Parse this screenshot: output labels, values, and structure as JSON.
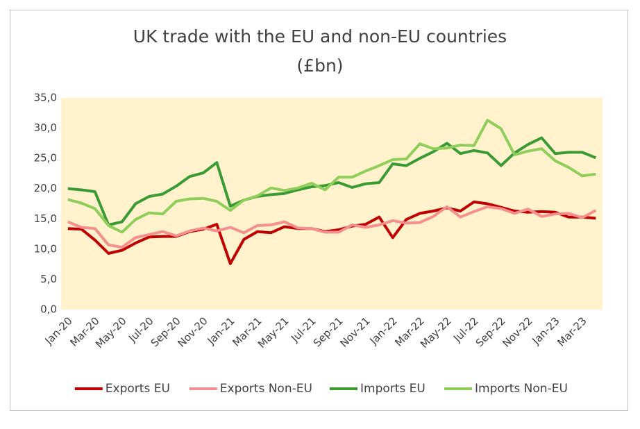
{
  "chart_data": {
    "type": "line",
    "title": [
      "UK trade with the EU and non-EU countries",
      "(£bn)"
    ],
    "categories": [
      "Jan-20",
      null,
      "Mar-20",
      null,
      "May-20",
      null,
      "Jul-20",
      null,
      "Sep-20",
      null,
      "Nov-20",
      null,
      "Jan-21",
      null,
      "Mar-21",
      null,
      "May-21",
      null,
      "Jul-21",
      null,
      "Sep-21",
      null,
      "Nov-21",
      null,
      "Jan-22",
      null,
      "Mar-22",
      null,
      "May-22",
      null,
      "Jul-22",
      null,
      "Sep-22",
      null,
      "Nov-22",
      null,
      "Jan-23",
      null,
      "Mar-23",
      null
    ],
    "series": [
      {
        "name": "Exports EU",
        "color": "#c00000",
        "values": [
          13.4,
          13.3,
          11.5,
          9.3,
          9.8,
          11.0,
          12.0,
          12.1,
          12.1,
          12.9,
          13.3,
          14.1,
          7.6,
          11.6,
          12.9,
          12.7,
          13.7,
          13.4,
          13.4,
          12.9,
          13.2,
          13.8,
          14.1,
          15.3,
          11.9,
          14.9,
          15.9,
          16.3,
          16.8,
          16.3,
          17.8,
          17.5,
          16.9,
          16.3,
          16.1,
          16.2,
          16.1,
          15.3,
          15.3,
          15.1
        ]
      },
      {
        "name": "Exports Non-EU",
        "color": "#f4908e",
        "values": [
          14.5,
          13.6,
          13.4,
          10.7,
          10.3,
          11.9,
          12.4,
          12.9,
          12.2,
          13.0,
          13.5,
          13.0,
          13.6,
          12.7,
          13.9,
          14.0,
          14.5,
          13.5,
          13.4,
          12.8,
          12.8,
          14.0,
          13.6,
          14.0,
          14.7,
          14.3,
          14.4,
          15.4,
          17.0,
          15.3,
          16.2,
          17.0,
          16.7,
          15.9,
          16.6,
          15.4,
          15.8,
          15.9,
          15.2,
          16.4
        ]
      },
      {
        "name": "Imports EU",
        "color": "#3a9b35",
        "values": [
          20.0,
          19.8,
          19.5,
          14.0,
          14.5,
          17.5,
          18.7,
          19.1,
          20.4,
          22.0,
          22.6,
          24.3,
          17.1,
          18.1,
          18.7,
          19.0,
          19.2,
          19.8,
          20.3,
          20.5,
          21.0,
          20.2,
          20.8,
          21.0,
          24.1,
          23.8,
          25.0,
          26.1,
          27.5,
          25.8,
          26.3,
          25.9,
          23.8,
          25.9,
          27.3,
          28.4,
          25.8,
          26.0,
          26.0,
          25.1
        ]
      },
      {
        "name": "Imports Non-EU",
        "color": "#8fce5a",
        "values": [
          18.2,
          17.6,
          16.7,
          13.9,
          12.8,
          14.9,
          16.0,
          15.8,
          17.9,
          18.3,
          18.4,
          17.9,
          16.4,
          18.1,
          18.8,
          20.1,
          19.7,
          20.1,
          20.9,
          19.8,
          21.9,
          21.9,
          22.9,
          23.8,
          24.8,
          24.9,
          27.4,
          26.6,
          26.7,
          27.2,
          27.1,
          31.3,
          29.9,
          25.6,
          26.2,
          26.6,
          24.6,
          23.5,
          22.1,
          22.4
        ]
      }
    ],
    "ylim": [
      0,
      35
    ],
    "yticks": [
      {
        "value": 0,
        "label": "0,0"
      },
      {
        "value": 5,
        "label": "5,0"
      },
      {
        "value": 10,
        "label": "10,0"
      },
      {
        "value": 15,
        "label": "15,0"
      },
      {
        "value": 20,
        "label": "20,0"
      },
      {
        "value": 25,
        "label": "25,0"
      },
      {
        "value": 30,
        "label": "30,0"
      },
      {
        "value": 35,
        "label": "35,0"
      }
    ],
    "plot_background": "#fff2cc",
    "legend": "bottom"
  }
}
